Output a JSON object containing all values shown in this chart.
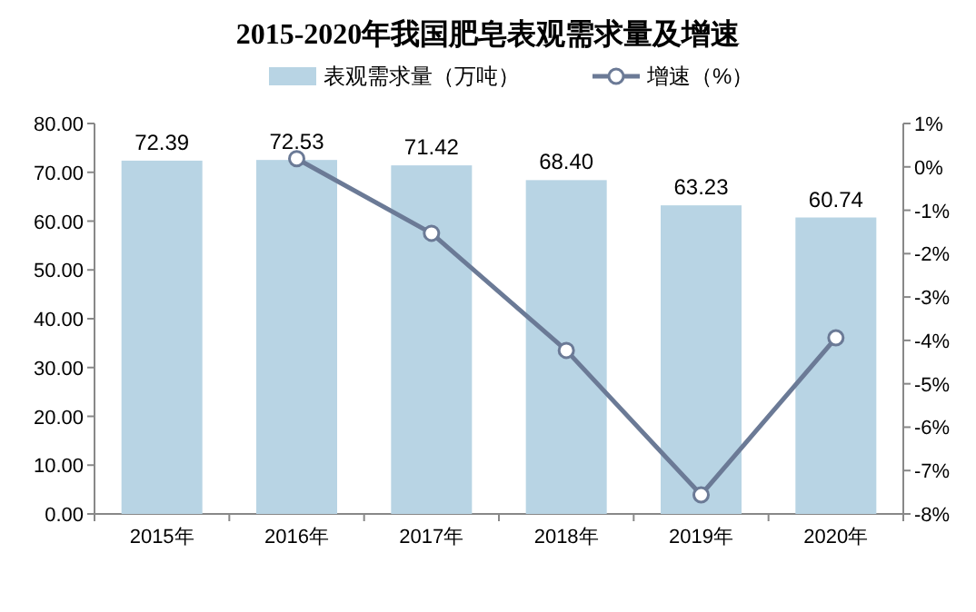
{
  "chart_data": {
    "type": "bar",
    "title": "2015-2020年我国肥皂表观需求量及增速",
    "categories": [
      "2015年",
      "2016年",
      "2017年",
      "2018年",
      "2019年",
      "2020年"
    ],
    "series": [
      {
        "name": "表观需求量（万吨）",
        "color": "#b8d4e4",
        "values": [
          72.39,
          72.53,
          71.42,
          68.4,
          63.23,
          60.74
        ],
        "value_labels": [
          "72.39",
          "72.53",
          "71.42",
          "68.40",
          "63.23",
          "60.74"
        ]
      },
      {
        "name": "增速（%）",
        "type": "line",
        "axis": "y2",
        "color": "#6b7a96",
        "marker": "circle",
        "values": [
          null,
          0.19,
          -1.53,
          -4.23,
          -7.56,
          -3.94
        ]
      }
    ],
    "ylim": [
      0,
      80
    ],
    "yticks": [
      {
        "value": 0,
        "label": "0.00"
      },
      {
        "value": 10,
        "label": "10.00"
      },
      {
        "value": 20,
        "label": "20.00"
      },
      {
        "value": 30,
        "label": "30.00"
      },
      {
        "value": 40,
        "label": "40.00"
      },
      {
        "value": 50,
        "label": "50.00"
      },
      {
        "value": 60,
        "label": "60.00"
      },
      {
        "value": 70,
        "label": "70.00"
      },
      {
        "value": 80,
        "label": "80.00"
      }
    ],
    "y2lim": [
      -8,
      1
    ],
    "y2ticks": [
      {
        "value": 1,
        "label": "1%"
      },
      {
        "value": 0,
        "label": "0%"
      },
      {
        "value": -1,
        "label": "-1%"
      },
      {
        "value": -2,
        "label": "-2%"
      },
      {
        "value": -3,
        "label": "-3%"
      },
      {
        "value": -4,
        "label": "-4%"
      },
      {
        "value": -5,
        "label": "-5%"
      },
      {
        "value": -6,
        "label": "-6%"
      },
      {
        "value": -7,
        "label": "-7%"
      },
      {
        "value": -8,
        "label": "-8%"
      }
    ],
    "legend": "top",
    "grid": false
  }
}
